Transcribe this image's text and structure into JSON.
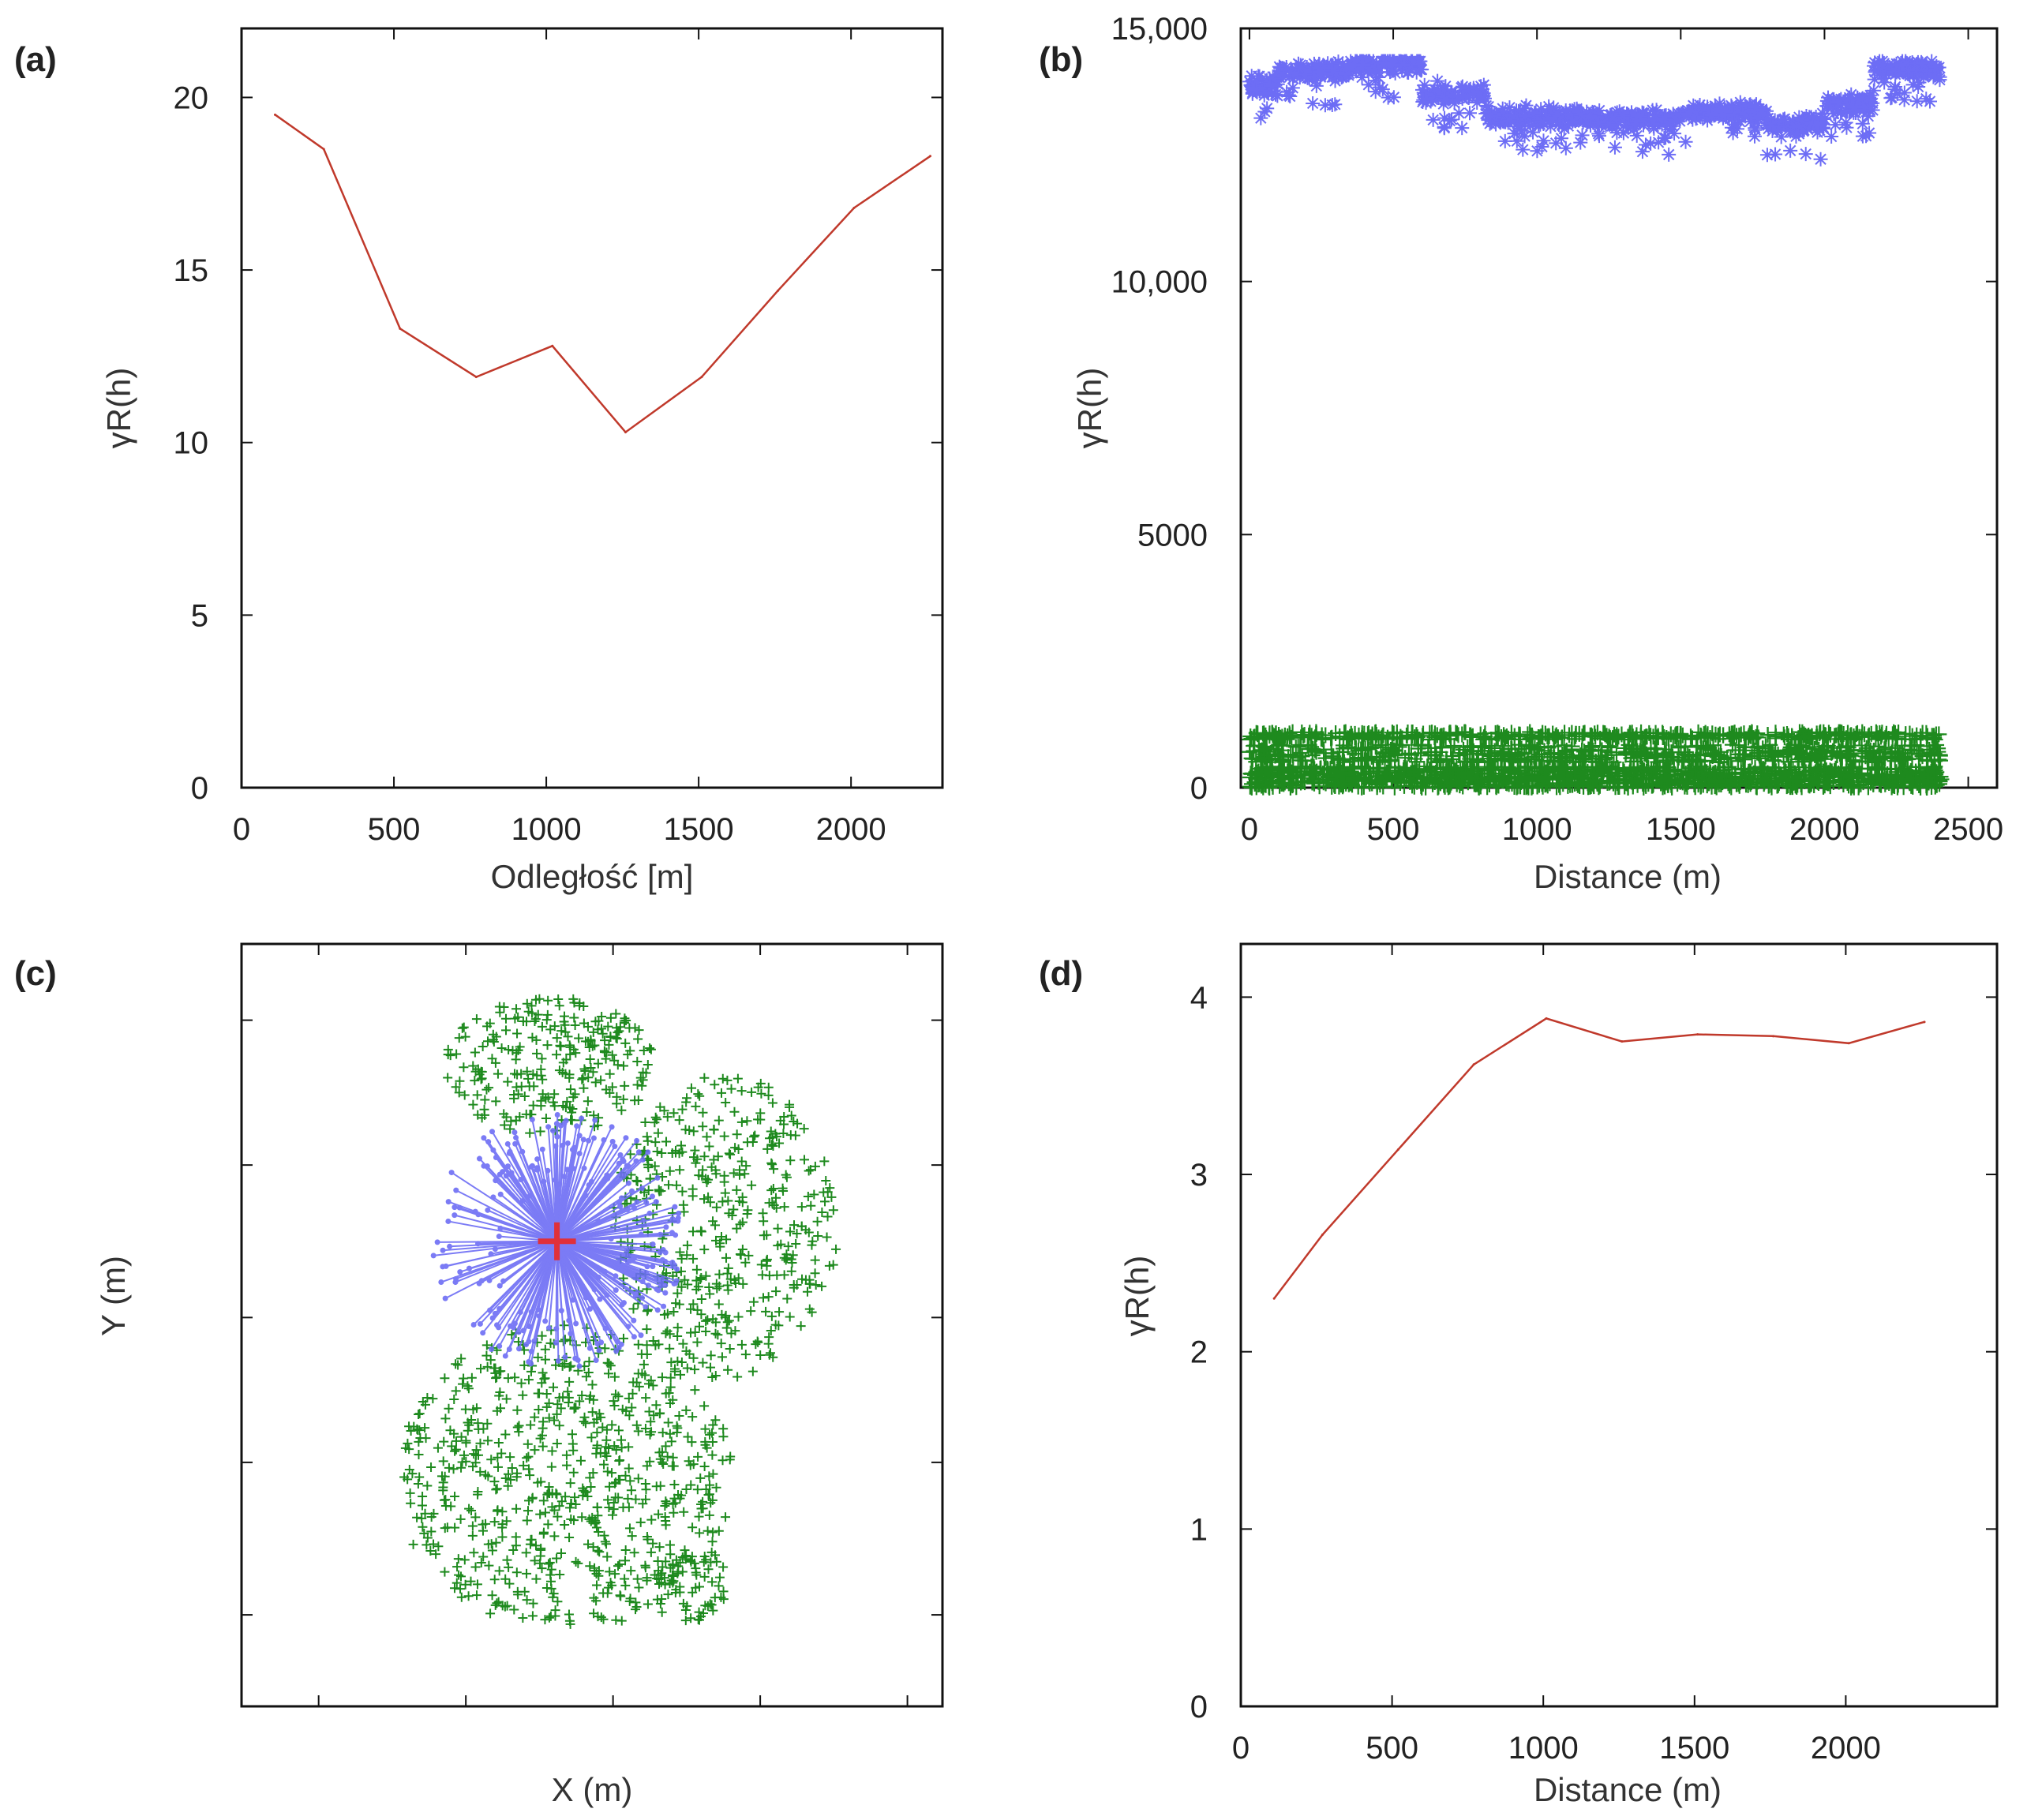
{
  "chart_data": [
    {
      "panel": "(a)",
      "type": "line",
      "xlabel": "Odległość [m]",
      "ylabel": "γR(h)",
      "xlim": [
        0,
        2300
      ],
      "ylim": [
        0,
        22
      ],
      "xticks": [
        0,
        500,
        1000,
        1500,
        2000
      ],
      "xtick_labels": [
        "0",
        "500",
        "1000",
        "1500",
        "2000"
      ],
      "yticks": [
        0,
        5,
        10,
        15,
        20
      ],
      "ytick_labels": [
        "0",
        "5",
        "10",
        "15",
        "20"
      ],
      "series": [
        {
          "name": "variogram",
          "color": "#c0392b",
          "x": [
            110,
            270,
            520,
            770,
            1020,
            1260,
            1510,
            1760,
            2010,
            2260
          ],
          "y": [
            19.5,
            18.5,
            13.3,
            11.9,
            12.8,
            10.3,
            11.9,
            14.4,
            16.8,
            18.3
          ]
        }
      ]
    },
    {
      "panel": "(b)",
      "type": "scatter",
      "xlabel": "Distance (m)",
      "ylabel": "γR(h)",
      "xlim": [
        -30,
        2600
      ],
      "ylim": [
        0,
        15000
      ],
      "xticks": [
        0,
        500,
        1000,
        1500,
        2000,
        2500
      ],
      "xtick_labels": [
        "0",
        "500",
        "1000",
        "1500",
        "2000",
        "2500"
      ],
      "yticks": [
        0,
        5000,
        10000,
        15000
      ],
      "ytick_labels": [
        "0",
        "5000",
        "10,000",
        "15,000"
      ],
      "series": [
        {
          "name": "upper variogram cloud",
          "color": "#6d6df5",
          "marker": "asterisk",
          "x_range": [
            0,
            2410
          ],
          "y_range": [
            12100,
            14350
          ],
          "band_levels": [
            {
              "x0": 0,
              "x1": 100,
              "y": 13900
            },
            {
              "x0": 100,
              "x1": 350,
              "y": 14150
            },
            {
              "x0": 350,
              "x1": 600,
              "y": 14300
            },
            {
              "x0": 600,
              "x1": 820,
              "y": 13700
            },
            {
              "x0": 820,
              "x1": 1200,
              "y": 13250
            },
            {
              "x0": 1200,
              "x1": 1500,
              "y": 13200
            },
            {
              "x0": 1500,
              "x1": 1800,
              "y": 13350
            },
            {
              "x0": 1800,
              "x1": 2000,
              "y": 13100
            },
            {
              "x0": 2000,
              "x1": 2170,
              "y": 13500
            },
            {
              "x0": 2170,
              "x1": 2410,
              "y": 14200
            }
          ]
        },
        {
          "name": "lower variogram cloud",
          "color": "#1e8a1e",
          "marker": "plus",
          "x_range": [
            0,
            2410
          ],
          "y_range": [
            0,
            1100
          ]
        }
      ]
    },
    {
      "panel": "(c)",
      "type": "scatter",
      "xlabel": "X (m)",
      "ylabel": "Y (m)",
      "xlim": [
        0,
        1
      ],
      "ylim": [
        0,
        1
      ],
      "tick_labels_shown": false,
      "series": [
        {
          "name": "sample locations",
          "color": "#1e8a1e",
          "marker": "plus",
          "clusters": [
            {
              "cx": 0.46,
              "cy": 0.3,
              "rx": 0.24,
              "ry": 0.2,
              "n": 700
            },
            {
              "cx": 0.69,
              "cy": 0.63,
              "rx": 0.16,
              "ry": 0.2,
              "n": 450
            },
            {
              "cx": 0.44,
              "cy": 0.84,
              "rx": 0.15,
              "ry": 0.09,
              "n": 260
            },
            {
              "cx": 0.64,
              "cy": 0.16,
              "rx": 0.06,
              "ry": 0.05,
              "n": 70
            }
          ]
        },
        {
          "name": "neighbourhood links",
          "color": "#6d6df5",
          "center": [
            0.45,
            0.61
          ],
          "radius": 0.18,
          "n": 260
        },
        {
          "name": "target point",
          "color": "#e0303a",
          "marker": "large-plus",
          "x": [
            0.45
          ],
          "y": [
            0.61
          ]
        }
      ]
    },
    {
      "panel": "(d)",
      "type": "line",
      "xlabel": "Distance (m)",
      "ylabel": "γR(h)",
      "xlim": [
        0,
        2500
      ],
      "ylim": [
        0,
        4.3
      ],
      "xticks": [
        0,
        500,
        1000,
        1500,
        2000
      ],
      "xtick_labels": [
        "0",
        "500",
        "1000",
        "1500",
        "2000"
      ],
      "yticks": [
        0,
        1,
        2,
        3,
        4
      ],
      "ytick_labels": [
        "0",
        "1",
        "2",
        "3",
        "4"
      ],
      "series": [
        {
          "name": "variogram",
          "color": "#c0392b",
          "x": [
            110,
            270,
            520,
            770,
            1010,
            1260,
            1510,
            1760,
            2010,
            2260
          ],
          "y": [
            2.3,
            2.66,
            3.14,
            3.62,
            3.88,
            3.75,
            3.79,
            3.78,
            3.74,
            3.86
          ]
        }
      ]
    }
  ]
}
